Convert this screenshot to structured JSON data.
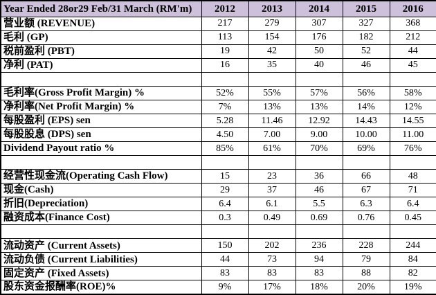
{
  "colors": {
    "header_bg": "#CCC0DA",
    "border": "#000000",
    "cell_bg": "#FFFFFF",
    "text": "#000000"
  },
  "table": {
    "header": {
      "label": "Year Ended 28or29 Feb/31 March (RM'm)",
      "years": [
        "2012",
        "2013",
        "2014",
        "2015",
        "2016"
      ]
    },
    "rows": [
      {
        "label": "营业额 (REVENUE)",
        "values": [
          "217",
          "279",
          "307",
          "327",
          "368"
        ],
        "blank": false
      },
      {
        "label": "毛利 (GP)",
        "values": [
          "113",
          "154",
          "176",
          "182",
          "212"
        ],
        "blank": false
      },
      {
        "label": "税前盈利 (PBT)",
        "values": [
          "19",
          "42",
          "50",
          "52",
          "44"
        ],
        "blank": false
      },
      {
        "label": "净利 (PAT)",
        "values": [
          "16",
          "35",
          "40",
          "46",
          "45"
        ],
        "blank": false
      },
      {
        "label": "",
        "values": [
          "",
          "",
          "",
          "",
          ""
        ],
        "blank": true
      },
      {
        "label": "毛利率(Gross Profit Margin) %",
        "values": [
          "52%",
          "55%",
          "57%",
          "56%",
          "58%"
        ],
        "blank": false
      },
      {
        "label": "净利率(Net Profit Margin) %",
        "values": [
          "7%",
          "13%",
          "13%",
          "14%",
          "12%"
        ],
        "blank": false
      },
      {
        "label": "每股盈利 (EPS) sen",
        "values": [
          "5.28",
          "11.46",
          "12.92",
          "14.43",
          "14.55"
        ],
        "blank": false
      },
      {
        "label": "每股股息 (DPS) sen",
        "values": [
          "4.50",
          "7.00",
          "9.00",
          "10.00",
          "11.00"
        ],
        "blank": false
      },
      {
        "label": "Dividend Payout ratio %",
        "values": [
          "85%",
          "61%",
          "70%",
          "69%",
          "76%"
        ],
        "blank": false
      },
      {
        "label": "",
        "values": [
          "",
          "",
          "",
          "",
          ""
        ],
        "blank": true
      },
      {
        "label": "经营性现金流(Operating Cash Flow)",
        "values": [
          "15",
          "23",
          "36",
          "66",
          "48"
        ],
        "blank": false
      },
      {
        "label": "现金(Cash)",
        "values": [
          "29",
          "37",
          "46",
          "67",
          "71"
        ],
        "blank": false
      },
      {
        "label": "折旧(Depreciation)",
        "values": [
          "6.4",
          "6.1",
          "5.5",
          "6.3",
          "6.4"
        ],
        "blank": false
      },
      {
        "label": "融资成本(Finance Cost)",
        "values": [
          "0.3",
          "0.49",
          "0.69",
          "0.76",
          "0.45"
        ],
        "blank": false
      },
      {
        "label": "",
        "values": [
          "",
          "",
          "",
          "",
          ""
        ],
        "blank": true
      },
      {
        "label": "流动资产 (Current Assets)",
        "values": [
          "150",
          "202",
          "236",
          "228",
          "244"
        ],
        "blank": false
      },
      {
        "label": "流动负债 (Current Liabilities)",
        "values": [
          "44",
          "73",
          "94",
          "79",
          "84"
        ],
        "blank": false
      },
      {
        "label": "固定资产 (Fixed Assets)",
        "values": [
          "83",
          "83",
          "83",
          "88",
          "82"
        ],
        "blank": false
      },
      {
        "label": "股东资金报酬率(ROE)%",
        "values": [
          "9%",
          "17%",
          "18%",
          "20%",
          "19%"
        ],
        "blank": false
      }
    ]
  },
  "chart_data": {
    "type": "table",
    "title": "Year Ended 28or29 Feb/31 March (RM'm)",
    "columns": [
      "2012",
      "2013",
      "2014",
      "2015",
      "2016"
    ],
    "series": [
      {
        "name": "营业额 (REVENUE)",
        "values": [
          217,
          279,
          307,
          327,
          368
        ]
      },
      {
        "name": "毛利 (GP)",
        "values": [
          113,
          154,
          176,
          182,
          212
        ]
      },
      {
        "name": "税前盈利 (PBT)",
        "values": [
          19,
          42,
          50,
          52,
          44
        ]
      },
      {
        "name": "净利 (PAT)",
        "values": [
          16,
          35,
          40,
          46,
          45
        ]
      },
      {
        "name": "毛利率(Gross Profit Margin) %",
        "values": [
          "52%",
          "55%",
          "57%",
          "56%",
          "58%"
        ]
      },
      {
        "name": "净利率(Net Profit Margin) %",
        "values": [
          "7%",
          "13%",
          "13%",
          "14%",
          "12%"
        ]
      },
      {
        "name": "每股盈利 (EPS) sen",
        "values": [
          5.28,
          11.46,
          12.92,
          14.43,
          14.55
        ]
      },
      {
        "name": "每股股息 (DPS) sen",
        "values": [
          4.5,
          7.0,
          9.0,
          10.0,
          11.0
        ]
      },
      {
        "name": "Dividend Payout ratio %",
        "values": [
          "85%",
          "61%",
          "70%",
          "69%",
          "76%"
        ]
      },
      {
        "name": "经营性现金流(Operating Cash Flow)",
        "values": [
          15,
          23,
          36,
          66,
          48
        ]
      },
      {
        "name": "现金(Cash)",
        "values": [
          29,
          37,
          46,
          67,
          71
        ]
      },
      {
        "name": "折旧(Depreciation)",
        "values": [
          6.4,
          6.1,
          5.5,
          6.3,
          6.4
        ]
      },
      {
        "name": "融资成本(Finance Cost)",
        "values": [
          0.3,
          0.49,
          0.69,
          0.76,
          0.45
        ]
      },
      {
        "name": "流动资产 (Current Assets)",
        "values": [
          150,
          202,
          236,
          228,
          244
        ]
      },
      {
        "name": "流动负债 (Current Liabilities)",
        "values": [
          44,
          73,
          94,
          79,
          84
        ]
      },
      {
        "name": "固定资产 (Fixed Assets)",
        "values": [
          83,
          83,
          83,
          88,
          82
        ]
      },
      {
        "name": "股东资金报酬率(ROE)%",
        "values": [
          "9%",
          "17%",
          "18%",
          "20%",
          "19%"
        ]
      }
    ]
  }
}
